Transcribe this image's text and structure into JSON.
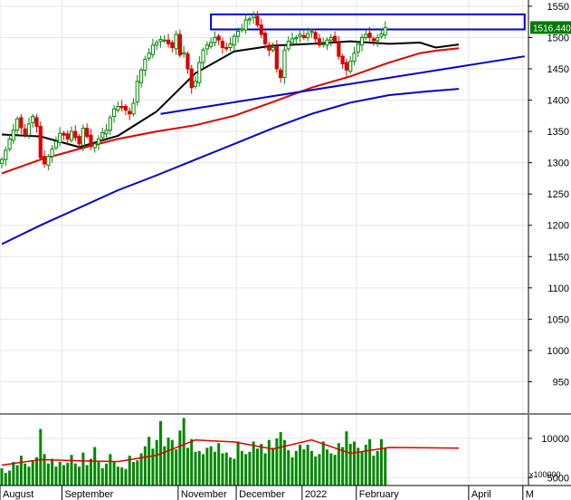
{
  "chart_data": [
    {
      "type": "candlestick",
      "title": "",
      "ylim": [
        900,
        1560
      ],
      "yticks": [
        950,
        1000,
        1050,
        1100,
        1150,
        1200,
        1250,
        1300,
        1350,
        1400,
        1450,
        1500,
        1550
      ],
      "last_price_label": "1516.440",
      "months": [
        {
          "label": "August",
          "index": 0
        },
        {
          "label": "September",
          "index": 16
        },
        {
          "label": "November",
          "index": 46
        },
        {
          "label": "December",
          "index": 61
        },
        {
          "label": "2022",
          "index": 78
        },
        {
          "label": "February",
          "index": 92
        },
        {
          "label": "April",
          "index": 121
        },
        {
          "label": "M",
          "index": 135
        }
      ],
      "closes": [
        1305,
        1320,
        1338,
        1352,
        1370,
        1356,
        1344,
        1362,
        1374,
        1358,
        1308,
        1298,
        1310,
        1322,
        1334,
        1347,
        1344,
        1338,
        1350,
        1340,
        1330,
        1355,
        1342,
        1326,
        1330,
        1338,
        1348,
        1352,
        1372,
        1386,
        1390,
        1388,
        1384,
        1378,
        1395,
        1430,
        1448,
        1465,
        1475,
        1488,
        1492,
        1497,
        1496,
        1490,
        1484,
        1505,
        1472,
        1476,
        1450,
        1420,
        1430,
        1460,
        1480,
        1488,
        1492,
        1500,
        1496,
        1484,
        1482,
        1490,
        1502,
        1510,
        1514,
        1528,
        1530,
        1536,
        1520,
        1505,
        1490,
        1480,
        1484,
        1450,
        1436,
        1480,
        1494,
        1498,
        1500,
        1505,
        1500,
        1506,
        1510,
        1498,
        1488,
        1490,
        1496,
        1500,
        1494,
        1470,
        1458,
        1448,
        1462,
        1475,
        1490,
        1500,
        1505,
        1500,
        1495,
        1500,
        1506,
        1516
      ],
      "moving_averages": [
        {
          "name": "",
          "color": "#000000",
          "values": [
            [
              0,
              1345
            ],
            [
              10,
              1342
            ],
            [
              20,
              1325
            ],
            [
              30,
              1343
            ],
            [
              40,
              1382
            ],
            [
              50,
              1443
            ],
            [
              60,
              1478
            ],
            [
              70,
              1487
            ],
            [
              80,
              1490
            ],
            [
              90,
              1494
            ],
            [
              100,
              1490
            ],
            [
              108,
              1492
            ],
            [
              112,
              1484
            ],
            [
              118,
              1489
            ]
          ]
        },
        {
          "name": "",
          "color": "#dd0000",
          "values": [
            [
              0,
              1283
            ],
            [
              10,
              1305
            ],
            [
              20,
              1322
            ],
            [
              30,
              1338
            ],
            [
              40,
              1350
            ],
            [
              50,
              1360
            ],
            [
              60,
              1375
            ],
            [
              70,
              1397
            ],
            [
              80,
              1420
            ],
            [
              90,
              1438
            ],
            [
              100,
              1460
            ],
            [
              108,
              1475
            ],
            [
              112,
              1479
            ],
            [
              118,
              1483
            ]
          ]
        },
        {
          "name": "",
          "color": "#0000cc",
          "values": [
            [
              0,
              1170
            ],
            [
              10,
              1200
            ],
            [
              20,
              1228
            ],
            [
              30,
              1256
            ],
            [
              40,
              1280
            ],
            [
              50,
              1305
            ],
            [
              60,
              1330
            ],
            [
              70,
              1355
            ],
            [
              80,
              1378
            ],
            [
              90,
              1396
            ],
            [
              100,
              1408
            ],
            [
              110,
              1414
            ],
            [
              118,
              1418
            ]
          ]
        }
      ],
      "trend_lines": [
        {
          "color": "#0000cc",
          "from": [
            41,
            1378
          ],
          "to": [
            135,
            1470
          ]
        }
      ],
      "resistance_box": {
        "color": "#0000cc",
        "x": [
          54,
          135
        ],
        "y": [
          1513,
          1537
        ]
      }
    },
    {
      "type": "bar",
      "ylim": [
        4000,
        13000
      ],
      "yticks": [
        5000,
        10000
      ],
      "unit_label": "x100000",
      "volume": [
        6200,
        5600,
        5900,
        7000,
        6600,
        7800,
        6800,
        6400,
        7100,
        7600,
        11200,
        8000,
        6800,
        7400,
        6400,
        7000,
        6600,
        6900,
        7900,
        6800,
        6400,
        8200,
        6600,
        7400,
        8900,
        7000,
        6200,
        6800,
        8000,
        7000,
        6400,
        6300,
        6100,
        7800,
        7000,
        7200,
        8100,
        9000,
        10200,
        8700,
        9800,
        12200,
        9000,
        10100,
        9800,
        8600,
        11000,
        12600,
        8800,
        9900,
        8300,
        8400,
        8000,
        8800,
        9000,
        8300,
        9400,
        8100,
        8200,
        7600,
        7400,
        9600,
        8400,
        8000,
        8300,
        9600,
        8700,
        9300,
        8100,
        9800,
        8800,
        10000,
        10800,
        9800,
        8500,
        7600,
        8400,
        9200,
        8600,
        9200,
        8400,
        7700,
        8000,
        9600,
        8600,
        8100,
        7900,
        9400,
        8900,
        10900,
        9300,
        9600,
        8800,
        8400,
        9200,
        9900,
        7800,
        8400,
        9900,
        8800
      ],
      "moving_average": [
        [
          0,
          6600
        ],
        [
          10,
          7300
        ],
        [
          20,
          7150
        ],
        [
          30,
          7050
        ],
        [
          40,
          7850
        ],
        [
          50,
          9800
        ],
        [
          60,
          9550
        ],
        [
          70,
          8650
        ],
        [
          80,
          9800
        ],
        [
          90,
          8100
        ],
        [
          100,
          8850
        ],
        [
          110,
          8800
        ],
        [
          118,
          8750
        ]
      ]
    }
  ]
}
